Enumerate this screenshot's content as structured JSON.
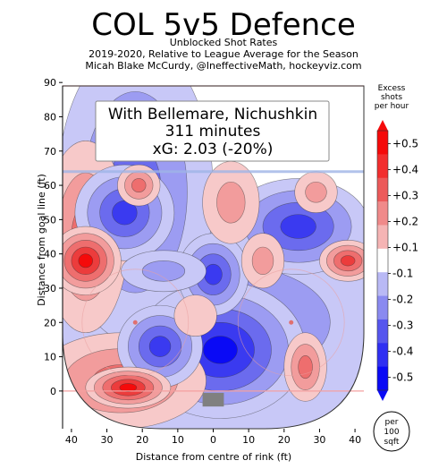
{
  "chart_data": {
    "type": "heatmap",
    "title": "COL 5v5 Defence",
    "subtitle_lines": [
      "Unblocked Shot Rates",
      "2019-2020, Relative to League Average for the Season",
      "Micah Blake McCurdy, @IneffectiveMath, hockeyviz.com"
    ],
    "annotation_lines": [
      "With Bellemare, Nichushkin",
      "311 minutes",
      "xG: 2.03 (-20%)"
    ],
    "xlabel": "Distance from centre of rink (ft)",
    "ylabel": "Distance from goal line (ft)",
    "x_ticks": [
      "40",
      "30",
      "20",
      "10",
      "0",
      "10",
      "20",
      "30",
      "40"
    ],
    "y_ticks": [
      "0",
      "10",
      "20",
      "30",
      "40",
      "50",
      "60",
      "70",
      "80",
      "90"
    ],
    "xlim": [
      -42.5,
      42.5
    ],
    "ylim": [
      -11,
      89
    ],
    "colorbar": {
      "title_lines": [
        "Excess",
        "shots",
        "per hour"
      ],
      "tick_labels": [
        "+0.5",
        "+0.4",
        "+0.3",
        "+0.2",
        "+0.1",
        "-0.1",
        "-0.2",
        "-0.3",
        "-0.4",
        "-0.5"
      ],
      "range": [
        -0.5,
        0.5
      ],
      "colors": [
        "#0a0af5",
        "#2f2ff2",
        "#5656ee",
        "#8a8af0",
        "#b9b9f5",
        "#ffffff",
        "#f5b4b4",
        "#f08a8a",
        "#ec5a5a",
        "#f22e2e",
        "#f50a0a"
      ]
    },
    "unit_badge_lines": [
      "per",
      "100",
      "sqft"
    ],
    "regions": [
      {
        "sign": "excess",
        "x": -36,
        "y": 38,
        "rx": 5,
        "ry": 5,
        "level": 0.5
      },
      {
        "sign": "excess",
        "x": -36,
        "y": 45,
        "rx": 6,
        "ry": 14,
        "level": 0.3
      },
      {
        "sign": "excess",
        "x": -24,
        "y": 1,
        "rx": 6,
        "ry": 3,
        "level": 0.5
      },
      {
        "sign": "excess",
        "x": -26,
        "y": 3,
        "rx": 12,
        "ry": 7,
        "level": 0.3
      },
      {
        "sign": "excess",
        "x": -21,
        "y": 60,
        "rx": 3,
        "ry": 3,
        "level": 0.3
      },
      {
        "sign": "excess",
        "x": 5,
        "y": 55,
        "rx": 4,
        "ry": 6,
        "level": 0.2
      },
      {
        "sign": "excess",
        "x": -5,
        "y": 22,
        "rx": 3,
        "ry": 3,
        "level": 0.1
      },
      {
        "sign": "excess",
        "x": 14,
        "y": 38,
        "rx": 3,
        "ry": 4,
        "level": 0.2
      },
      {
        "sign": "excess",
        "x": 26,
        "y": 7,
        "rx": 3,
        "ry": 5,
        "level": 0.3
      },
      {
        "sign": "excess",
        "x": 38,
        "y": 38,
        "rx": 4,
        "ry": 3,
        "level": 0.4
      },
      {
        "sign": "excess",
        "x": 29,
        "y": 58,
        "rx": 3,
        "ry": 3,
        "level": 0.2
      },
      {
        "sign": "deficit",
        "x": -25,
        "y": 52,
        "rx": 7,
        "ry": 7,
        "level": 0.4
      },
      {
        "sign": "deficit",
        "x": 24,
        "y": 48,
        "rx": 10,
        "ry": 7,
        "level": 0.4
      },
      {
        "sign": "deficit",
        "x": 2,
        "y": 12,
        "rx": 12,
        "ry": 10,
        "level": 0.5
      },
      {
        "sign": "deficit",
        "x": 0,
        "y": 34,
        "rx": 5,
        "ry": 6,
        "level": 0.4
      },
      {
        "sign": "deficit",
        "x": -15,
        "y": 13,
        "rx": 6,
        "ry": 6,
        "level": 0.4
      },
      {
        "sign": "deficit",
        "x": -22,
        "y": 58,
        "rx": 11,
        "ry": 22,
        "level": 0.3
      },
      {
        "sign": "deficit",
        "x": 3,
        "y": 20,
        "rx": 30,
        "ry": 17,
        "level": 0.2
      },
      {
        "sign": "deficit",
        "x": -14,
        "y": 35,
        "rx": 6,
        "ry": 3,
        "level": 0.2
      }
    ]
  }
}
